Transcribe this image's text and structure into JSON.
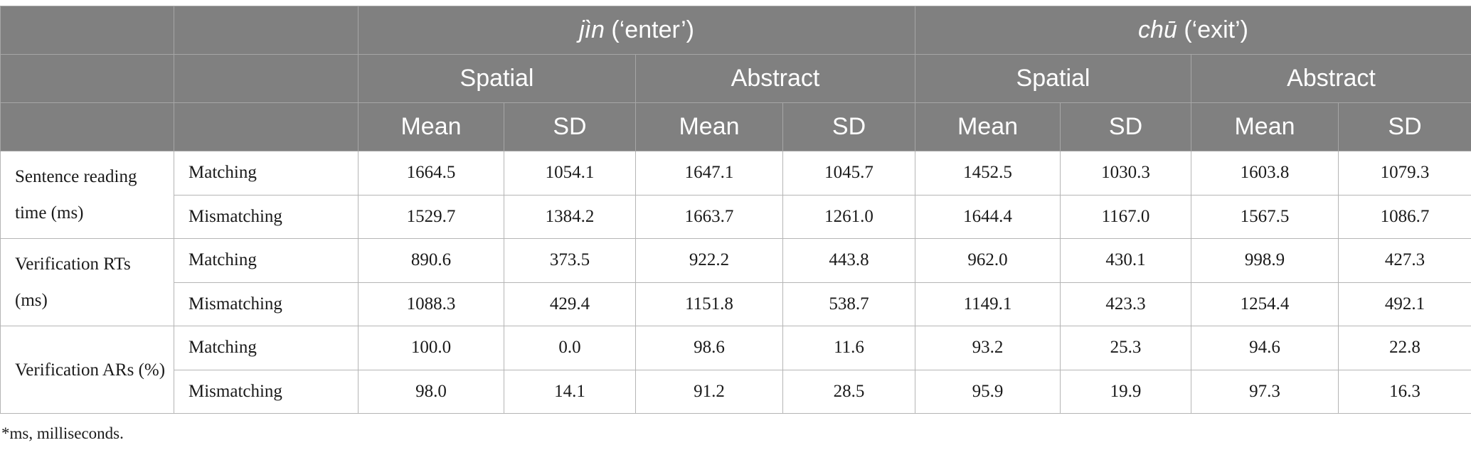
{
  "header": {
    "verb_jin": {
      "word": "jìn",
      "gloss": " (‘enter’)"
    },
    "verb_chu": {
      "word": "chū",
      "gloss": " (‘exit’)"
    },
    "type_spatial": "Spatial",
    "type_abstract": "Abstract",
    "stat_mean": "Mean",
    "stat_sd": "SD"
  },
  "rows": [
    {
      "measure": "Sentence reading time (ms)",
      "condition": "Matching",
      "values": [
        "1664.5",
        "1054.1",
        "1647.1",
        "1045.7",
        "1452.5",
        "1030.3",
        "1603.8",
        "1079.3"
      ]
    },
    {
      "measure": "",
      "condition": "Mismatching",
      "values": [
        "1529.7",
        "1384.2",
        "1663.7",
        "1261.0",
        "1644.4",
        "1167.0",
        "1567.5",
        "1086.7"
      ]
    },
    {
      "measure": "Verification RTs (ms)",
      "condition": "Matching",
      "values": [
        "890.6",
        "373.5",
        "922.2",
        "443.8",
        "962.0",
        "430.1",
        "998.9",
        "427.3"
      ]
    },
    {
      "measure": "",
      "condition": "Mismatching",
      "values": [
        "1088.3",
        "429.4",
        "1151.8",
        "538.7",
        "1149.1",
        "423.3",
        "1254.4",
        "492.1"
      ]
    },
    {
      "measure": "Verification ARs (%)",
      "condition": "Matching",
      "values": [
        "100.0",
        "0.0",
        "98.6",
        "11.6",
        "93.2",
        "25.3",
        "94.6",
        "22.8"
      ]
    },
    {
      "measure": "",
      "condition": "Mismatching",
      "values": [
        "98.0",
        "14.1",
        "91.2",
        "28.5",
        "95.9",
        "19.9",
        "97.3",
        "16.3"
      ]
    }
  ],
  "footnote": "*ms, milliseconds."
}
